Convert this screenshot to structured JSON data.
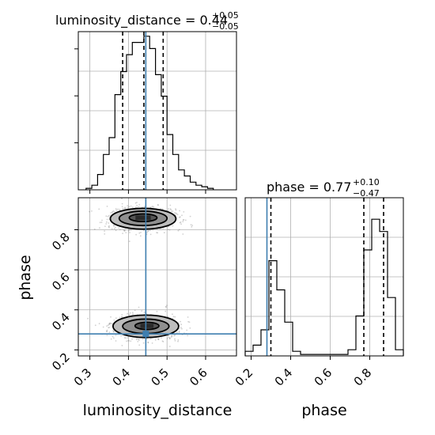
{
  "colors": {
    "truth": "#3f7fb0",
    "hist": "#000000",
    "grid": "#b0b0b0",
    "scatter": "#7a7a7a",
    "contour_fill": [
      "#e2e2e2",
      "#bdbdbd",
      "#8f8f8f",
      "#555555",
      "#2a2a2a"
    ]
  },
  "chart_data": [
    {
      "id": "lum-hist",
      "type": "bar",
      "style": "step-histogram",
      "title": {
        "text": "luminosity_distance = 0.44",
        "sup": "+0.05",
        "sub": "−0.05"
      },
      "xlim": [
        0.27,
        0.68
      ],
      "ylim": [
        0,
        1
      ],
      "grid": true,
      "bin_edges": [
        0.29,
        0.305,
        0.32,
        0.335,
        0.35,
        0.365,
        0.38,
        0.395,
        0.41,
        0.425,
        0.44,
        0.455,
        0.47,
        0.485,
        0.5,
        0.515,
        0.53,
        0.545,
        0.56,
        0.575,
        0.59,
        0.605,
        0.62
      ],
      "values": [
        0.01,
        0.03,
        0.1,
        0.23,
        0.34,
        0.62,
        0.77,
        0.88,
        0.96,
        0.96,
        1.0,
        0.92,
        0.75,
        0.61,
        0.36,
        0.23,
        0.13,
        0.09,
        0.05,
        0.03,
        0.02,
        0.01
      ],
      "quantiles": [
        0.385,
        0.44,
        0.49
      ],
      "truth": 0.445,
      "xticks": [
        0.3,
        0.4,
        0.5,
        0.6
      ]
    },
    {
      "id": "phase-hist",
      "type": "bar",
      "style": "step-histogram",
      "title": {
        "text": "phase = 0.77",
        "sup": "+0.10",
        "sub": "−0.47"
      },
      "xlabel": "phase",
      "xlim": [
        0.17,
        0.97
      ],
      "ylim": [
        0,
        1
      ],
      "grid": true,
      "bin_edges": [
        0.17,
        0.21,
        0.25,
        0.29,
        0.33,
        0.37,
        0.41,
        0.45,
        0.49,
        0.53,
        0.57,
        0.61,
        0.65,
        0.69,
        0.73,
        0.77,
        0.81,
        0.85,
        0.89,
        0.93,
        0.97
      ],
      "values": [
        0.03,
        0.07,
        0.17,
        0.62,
        0.43,
        0.22,
        0.03,
        0.01,
        0.01,
        0.01,
        0.01,
        0.01,
        0.01,
        0.04,
        0.26,
        0.69,
        0.89,
        0.81,
        0.38,
        0.04
      ],
      "quantiles": [
        0.3,
        0.77,
        0.87
      ],
      "truth": 0.28,
      "xticks": [
        0.2,
        0.4,
        0.6,
        0.8
      ]
    },
    {
      "id": "joint",
      "type": "scatter",
      "style": "2d-density-contour",
      "xlabel": "luminosity_distance",
      "ylabel": "phase",
      "xlim": [
        0.27,
        0.68
      ],
      "ylim": [
        0.17,
        0.96
      ],
      "grid": true,
      "xticks": [
        0.3,
        0.4,
        0.5,
        0.6
      ],
      "yticks": [
        0.2,
        0.4,
        0.6,
        0.8
      ],
      "truth": {
        "x": 0.445,
        "y": 0.28
      },
      "modes": [
        {
          "cx": 0.44,
          "cy": 0.855,
          "sx": 0.045,
          "sy": 0.03,
          "weight": 0.55
        },
        {
          "cx": 0.445,
          "cy": 0.315,
          "sx": 0.045,
          "sy": 0.033,
          "weight": 0.45
        }
      ],
      "contour_levels": [
        {
          "cx": 0.438,
          "cy": 0.855,
          "rx": 0.085,
          "ry": 0.052
        },
        {
          "cx": 0.438,
          "cy": 0.857,
          "rx": 0.062,
          "ry": 0.036
        },
        {
          "cx": 0.438,
          "cy": 0.86,
          "rx": 0.036,
          "ry": 0.019
        },
        {
          "cx": 0.445,
          "cy": 0.318,
          "rx": 0.085,
          "ry": 0.056
        },
        {
          "cx": 0.445,
          "cy": 0.318,
          "rx": 0.06,
          "ry": 0.036
        },
        {
          "cx": 0.448,
          "cy": 0.32,
          "rx": 0.031,
          "ry": 0.018
        }
      ],
      "scatter_count": 1400
    }
  ]
}
